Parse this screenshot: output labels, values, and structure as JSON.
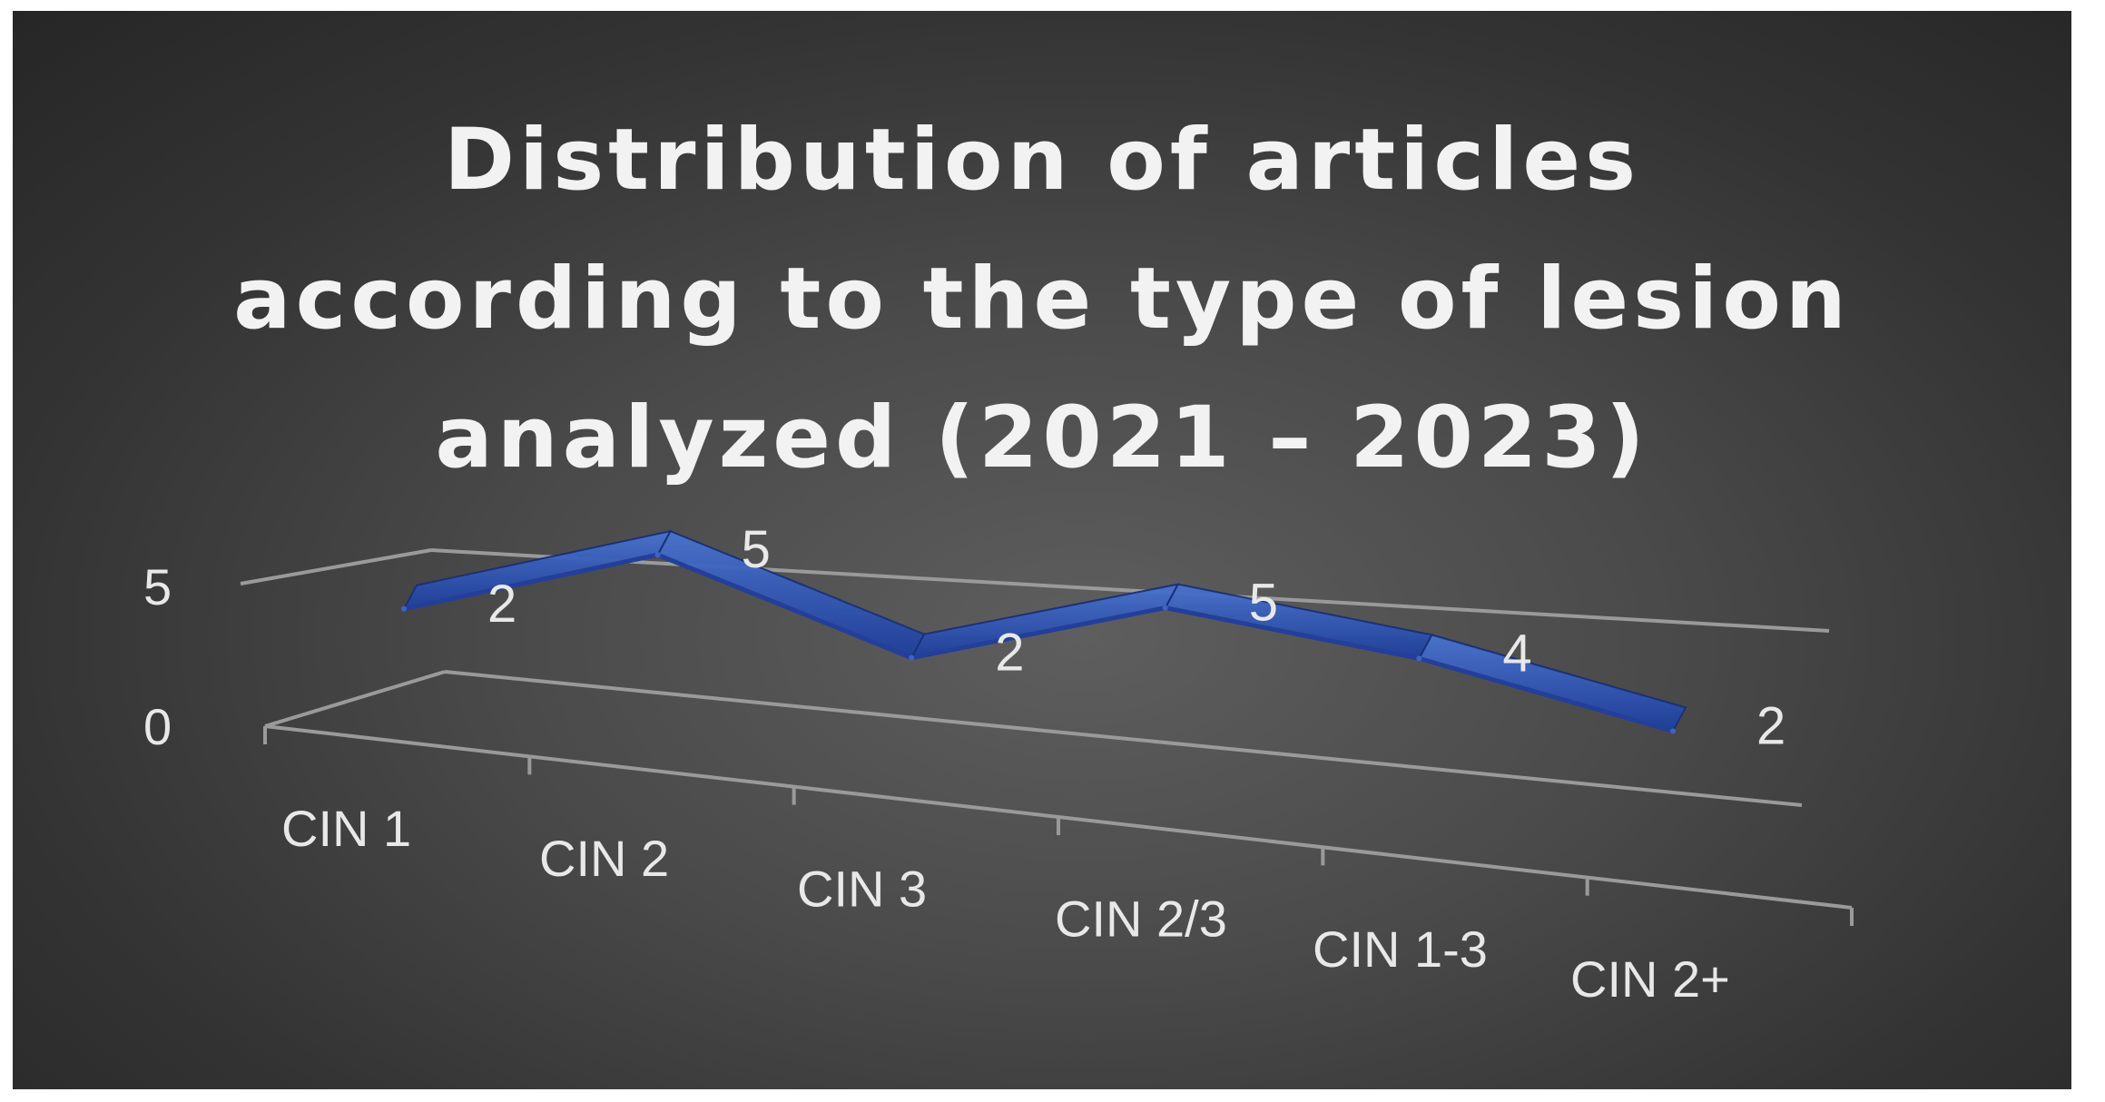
{
  "chart_data": {
    "type": "line",
    "title": "Distribution of articles\naccording to the type of lesion\nanalyzed (2021 – 2023)",
    "categories": [
      "CIN 1",
      "CIN 2",
      "CIN 3",
      "CIN 2/3",
      "CIN 1-3",
      "CIN 2+"
    ],
    "series": [
      {
        "values": [
          2,
          5,
          2,
          5,
          4,
          2
        ]
      }
    ],
    "ylim": [
      0,
      5
    ],
    "yticks": [
      "0",
      "5"
    ],
    "style": "3d-ribbon",
    "grid": false,
    "legend": "none",
    "colors": {
      "ribbon_top": "#4a74d0",
      "ribbon_side": "#1f3f9c",
      "axis": "#9a9a9a",
      "background": "#3c3c3c",
      "text": "#e8e8e8"
    }
  }
}
